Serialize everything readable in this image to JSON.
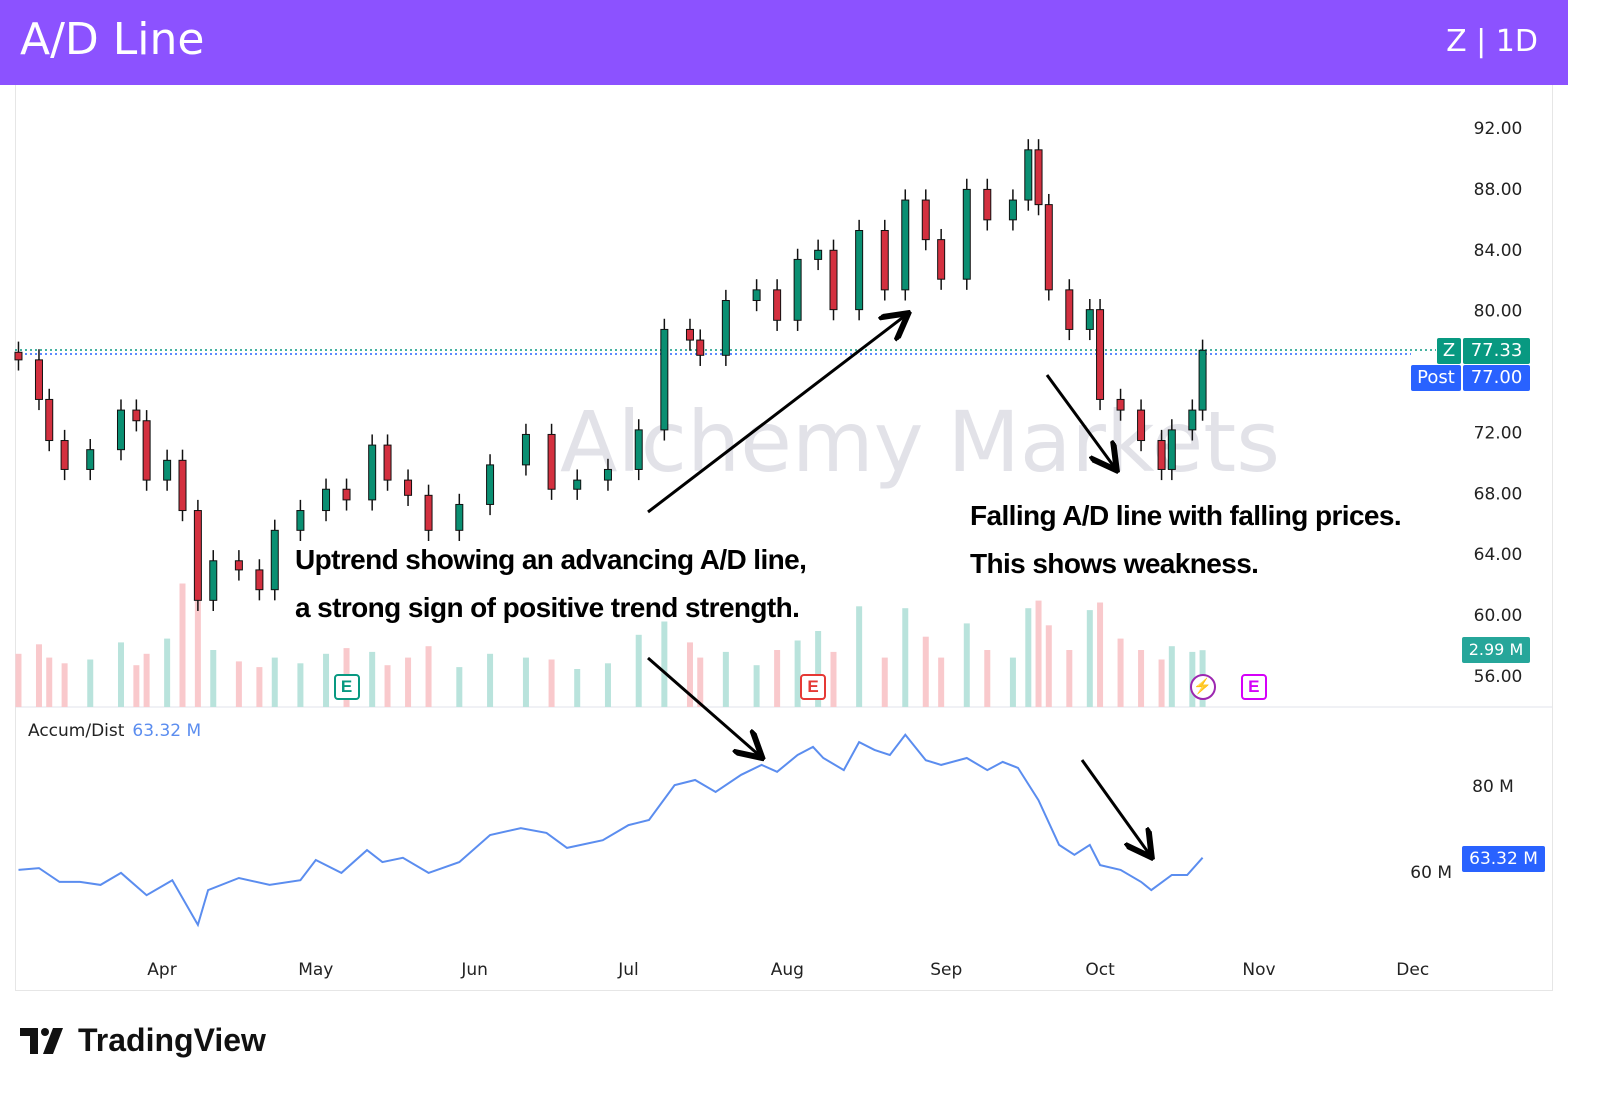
{
  "header": {
    "title": "A/D Line",
    "symbol_interval": "Z | 1D"
  },
  "colors": {
    "header": "#8c52ff",
    "up": "#0a8f72",
    "down": "#d3303f",
    "ad_line": "#5b8def",
    "last_price": "#089981",
    "post": "#2962ff"
  },
  "watermark": [
    "Alchemy",
    "Markets"
  ],
  "annotations": {
    "uptrend": [
      "Uptrend showing an advancing A/D line,",
      "a strong sign of positive trend strength."
    ],
    "falling": [
      "Falling A/D line with falling prices.",
      "This shows weakness."
    ]
  },
  "price_labels": {
    "symbol": "Z",
    "last": "77.33",
    "post_label": "Post",
    "post": "77.00",
    "volume": "2.99 M",
    "ad_value": "63.32 M"
  },
  "indicator_legend": {
    "name": "Accum/Dist",
    "value": "63.32 M"
  },
  "events": [
    {
      "icon": "earnings-icon",
      "label": "E",
      "date": "May 7",
      "color": "#089981"
    },
    {
      "icon": "earnings-icon",
      "label": "E",
      "date": "Aug 6",
      "color": "#e53935"
    },
    {
      "icon": "lightning-icon",
      "label": "",
      "date": "Oct 21",
      "color": "#9c27b0"
    },
    {
      "icon": "earnings-icon",
      "label": "E",
      "date": "Oct 31",
      "color": "#d500f9"
    }
  ],
  "branding": {
    "name": "TradingView"
  },
  "chart_data": [
    {
      "type": "candlestick",
      "title": "",
      "y_ticks": [
        "92.00",
        "88.00",
        "84.00",
        "80.00",
        "72.00",
        "68.00",
        "64.00",
        "60.00",
        "56.00"
      ],
      "x_ticks": [
        "Apr",
        "May",
        "Jun",
        "Jul",
        "Aug",
        "Sep",
        "Oct",
        "Nov",
        "Dec"
      ],
      "ylim": [
        54,
        94
      ],
      "grid": false,
      "close": [
        [
          "Mar 4",
          76.7
        ],
        [
          "Mar 8",
          74.1
        ],
        [
          "Mar 10",
          71.4
        ],
        [
          "Mar 13",
          69.5
        ],
        [
          "Mar 18",
          70.8
        ],
        [
          "Mar 24",
          73.4
        ],
        [
          "Mar 27",
          72.7
        ],
        [
          "Mar 29",
          68.8
        ],
        [
          "Apr 2",
          70.1
        ],
        [
          "Apr 5",
          66.8
        ],
        [
          "Apr 8",
          60.9
        ],
        [
          "Apr 11",
          63.5
        ],
        [
          "Apr 16",
          62.9
        ],
        [
          "Apr 20",
          61.6
        ],
        [
          "Apr 23",
          65.5
        ],
        [
          "Apr 28",
          66.8
        ],
        [
          "May 3",
          68.2
        ],
        [
          "May 7",
          67.5
        ],
        [
          "May 12",
          71.1
        ],
        [
          "May 15",
          68.8
        ],
        [
          "May 19",
          67.8
        ],
        [
          "May 23",
          65.5
        ],
        [
          "May 29",
          67.2
        ],
        [
          "Jun 4",
          69.8
        ],
        [
          "Jun 11",
          71.8
        ],
        [
          "Jun 16",
          68.2
        ],
        [
          "Jun 21",
          68.8
        ],
        [
          "Jun 27",
          69.5
        ],
        [
          "Jul 3",
          72.1
        ],
        [
          "Jul 8",
          78.7
        ],
        [
          "Jul 13",
          78.0
        ],
        [
          "Jul 15",
          77.0
        ],
        [
          "Jul 20",
          80.6
        ],
        [
          "Jul 26",
          81.3
        ],
        [
          "Jul 30",
          79.3
        ],
        [
          "Aug 3",
          83.3
        ],
        [
          "Aug 7",
          83.9
        ],
        [
          "Aug 10",
          80.0
        ],
        [
          "Aug 15",
          85.2
        ],
        [
          "Aug 20",
          81.3
        ],
        [
          "Aug 24",
          87.2
        ],
        [
          "Aug 28",
          84.6
        ],
        [
          "Aug 31",
          82.0
        ],
        [
          "Sep 5",
          87.9
        ],
        [
          "Sep 9",
          85.9
        ],
        [
          "Sep 14",
          87.2
        ],
        [
          "Sep 17",
          90.5
        ],
        [
          "Sep 19",
          86.9
        ],
        [
          "Sep 21",
          81.3
        ],
        [
          "Sep 25",
          78.7
        ],
        [
          "Sep 29",
          80.0
        ],
        [
          "Oct 1",
          74.1
        ],
        [
          "Oct 5",
          73.4
        ],
        [
          "Oct 9",
          71.4
        ],
        [
          "Oct 13",
          69.5
        ],
        [
          "Oct 15",
          72.1
        ],
        [
          "Oct 19",
          73.4
        ],
        [
          "Oct 21",
          77.33
        ]
      ],
      "volume_m": [
        2.8,
        3.3,
        2.6,
        2.3,
        2.5,
        3.4,
        2.2,
        2.8,
        3.6,
        6.5,
        6.0,
        3.0,
        2.4,
        2.1,
        2.6,
        2.3,
        2.8,
        3.1,
        2.9,
        2.2,
        2.6,
        3.2,
        2.1,
        2.8,
        2.6,
        2.5,
        2.0,
        2.3,
        3.8,
        4.5,
        3.4,
        2.6,
        2.9,
        2.2,
        3.0,
        3.5,
        4.0,
        2.9,
        5.3,
        2.6,
        5.2,
        3.7,
        2.6,
        4.4,
        3.0,
        2.6,
        5.2,
        5.6,
        4.3,
        3.0,
        5.1,
        5.5,
        3.6,
        3.0,
        2.5,
        3.2,
        2.9,
        2.99
      ]
    },
    {
      "type": "line",
      "name": "Accum/Dist",
      "y_ticks": [
        "80 M",
        "60 M"
      ],
      "grid": false,
      "points": [
        [
          "Mar 4",
          60.5
        ],
        [
          "Mar 8",
          60.9
        ],
        [
          "Mar 12",
          57.7
        ],
        [
          "Mar 16",
          57.7
        ],
        [
          "Mar 20",
          57.0
        ],
        [
          "Mar 24",
          59.8
        ],
        [
          "Mar 29",
          54.6
        ],
        [
          "Apr 3",
          58.1
        ],
        [
          "Apr 8",
          47.7
        ],
        [
          "Apr 10",
          55.8
        ],
        [
          "Apr 16",
          58.6
        ],
        [
          "Apr 22",
          57.0
        ],
        [
          "Apr 28",
          58.1
        ],
        [
          "May 1",
          62.8
        ],
        [
          "May 6",
          59.8
        ],
        [
          "May 11",
          65.1
        ],
        [
          "May 14",
          62.3
        ],
        [
          "May 18",
          63.3
        ],
        [
          "May 23",
          59.8
        ],
        [
          "May 29",
          62.3
        ],
        [
          "Jun 4",
          68.6
        ],
        [
          "Jun 10",
          70.2
        ],
        [
          "Jun 15",
          69.1
        ],
        [
          "Jun 19",
          65.6
        ],
        [
          "Jun 26",
          67.4
        ],
        [
          "Jul 1",
          70.9
        ],
        [
          "Jul 5",
          72.1
        ],
        [
          "Jul 10",
          80.2
        ],
        [
          "Jul 14",
          81.4
        ],
        [
          "Jul 18",
          78.6
        ],
        [
          "Jul 23",
          82.6
        ],
        [
          "Jul 27",
          84.9
        ],
        [
          "Jul 30",
          83.3
        ],
        [
          "Aug 3",
          87.2
        ],
        [
          "Aug 6",
          89.1
        ],
        [
          "Aug 8",
          86.5
        ],
        [
          "Aug 12",
          83.7
        ],
        [
          "Aug 15",
          90.2
        ],
        [
          "Aug 18",
          88.4
        ],
        [
          "Aug 21",
          87.2
        ],
        [
          "Aug 24",
          91.9
        ],
        [
          "Aug 28",
          86.0
        ],
        [
          "Aug 31",
          84.9
        ],
        [
          "Sep 5",
          86.5
        ],
        [
          "Sep 9",
          83.7
        ],
        [
          "Sep 12",
          85.6
        ],
        [
          "Sep 15",
          84.2
        ],
        [
          "Sep 19",
          76.7
        ],
        [
          "Sep 23",
          66.3
        ],
        [
          "Sep 26",
          64.0
        ],
        [
          "Sep 29",
          66.3
        ],
        [
          "Oct 1",
          61.6
        ],
        [
          "Oct 5",
          60.5
        ],
        [
          "Oct 9",
          57.7
        ],
        [
          "Oct 11",
          55.8
        ],
        [
          "Oct 15",
          59.3
        ],
        [
          "Oct 18",
          59.3
        ],
        [
          "Oct 21",
          63.32
        ]
      ]
    }
  ]
}
